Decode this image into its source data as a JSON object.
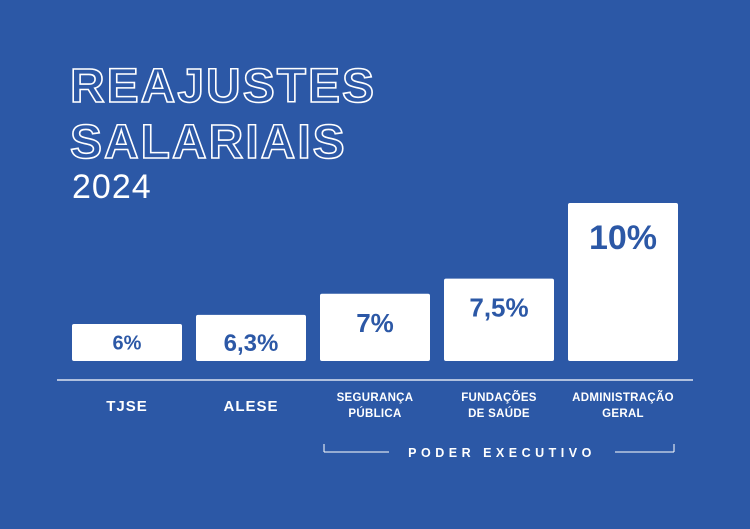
{
  "title_line1": "REAJUSTES",
  "title_line2": "SALARIAIS",
  "year": "2024",
  "colors": {
    "background": "#2c58a6",
    "bar": "#ffffff",
    "label_on_bar": "#2c58a6",
    "text": "#ffffff"
  },
  "chart_data": {
    "type": "bar",
    "title": "REAJUSTES SALARIAIS 2024",
    "categories": [
      [
        "TJSE"
      ],
      [
        "ALESE"
      ],
      [
        "SEGURANÇA",
        "PÚBLICA"
      ],
      [
        "FUNDAÇÕES",
        "DE SAÚDE"
      ],
      [
        "ADMINISTRAÇÃO",
        "GERAL"
      ]
    ],
    "values": [
      6,
      6.3,
      7,
      7.5,
      10
    ],
    "data_labels": [
      "6%",
      "6,3%",
      "7%",
      "7,5%",
      "10%"
    ],
    "ylim": [
      5.5,
      10
    ],
    "grid": false,
    "group_label": "PODER EXECUTIVO",
    "group_spans_categories": [
      2,
      4
    ]
  }
}
